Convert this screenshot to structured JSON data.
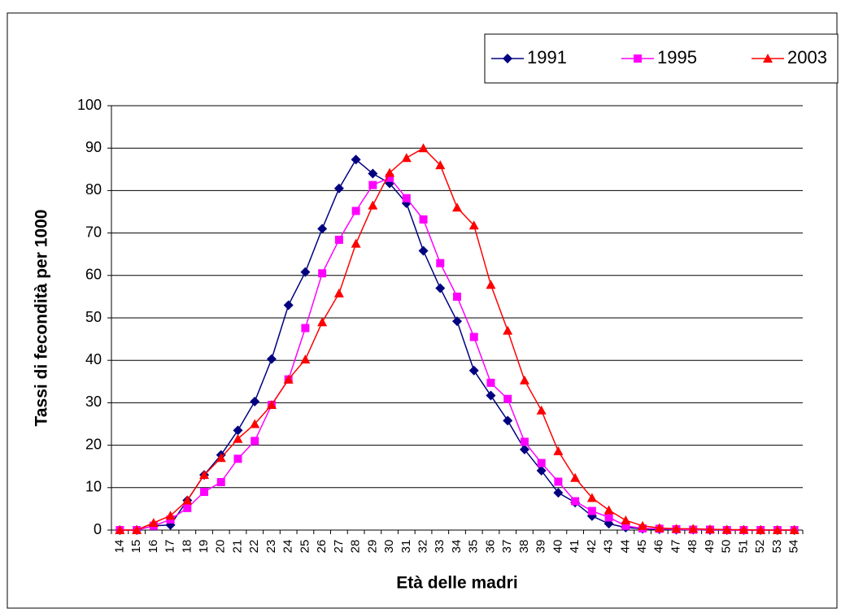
{
  "chart_data": {
    "type": "line",
    "x_label": "Età delle madri",
    "y_label": "Tassi di fecondità per 1000",
    "categories": [
      "14",
      "15",
      "16",
      "17",
      "18",
      "19",
      "20",
      "21",
      "22",
      "23",
      "24",
      "25",
      "26",
      "27",
      "28",
      "29",
      "30",
      "31",
      "32",
      "33",
      "34",
      "35",
      "36",
      "37",
      "38",
      "39",
      "40",
      "41",
      "42",
      "43",
      "44",
      "45",
      "46",
      "47",
      "48",
      "49",
      "50",
      "51",
      "52",
      "53",
      "54"
    ],
    "series": [
      {
        "name": "1991",
        "color": "#000080",
        "marker": "diamond",
        "values": [
          0,
          0,
          1,
          1.2,
          7,
          13,
          17.7,
          23.5,
          30.3,
          40.3,
          53,
          60.8,
          71,
          80.5,
          87.3,
          84,
          81.7,
          77,
          65.8,
          57,
          49.2,
          37.6,
          31.7,
          25.8,
          19,
          14,
          8.8,
          6.5,
          3.3,
          1.5,
          0.6,
          0.3,
          0.2,
          0.1,
          0.1,
          0,
          0,
          0,
          0,
          0,
          0
        ]
      },
      {
        "name": "1995",
        "color": "#ff00ff",
        "marker": "square",
        "values": [
          0,
          0,
          1,
          2.5,
          5.2,
          9,
          11.3,
          16.8,
          21,
          29.5,
          35.5,
          47.6,
          60.5,
          68.4,
          75.2,
          81.3,
          83,
          78.2,
          73.2,
          62.9,
          55,
          45.5,
          34.7,
          30.9,
          20.8,
          15.8,
          11.4,
          6.8,
          4.5,
          3,
          1,
          0.4,
          0.3,
          0.2,
          0.1,
          0.1,
          0,
          0,
          0,
          0,
          0
        ]
      },
      {
        "name": "2003",
        "color": "#ff0000",
        "marker": "triangle",
        "values": [
          0,
          0,
          1.7,
          3.4,
          7,
          13,
          17,
          21.5,
          25,
          29.5,
          35.5,
          40.2,
          49,
          55.8,
          67.5,
          76.5,
          84.2,
          87.7,
          90,
          86,
          76,
          71.8,
          57.8,
          47,
          35.3,
          28.2,
          18.6,
          12.3,
          7.6,
          4.7,
          2.3,
          1,
          0.5,
          0.3,
          0.3,
          0.2,
          0.1,
          0.1,
          0,
          0,
          0
        ]
      }
    ],
    "ylim": [
      0,
      100
    ],
    "yticks": [
      0,
      10,
      20,
      30,
      40,
      50,
      60,
      70,
      80,
      90,
      100
    ],
    "grid": true,
    "legend": "top-right"
  }
}
